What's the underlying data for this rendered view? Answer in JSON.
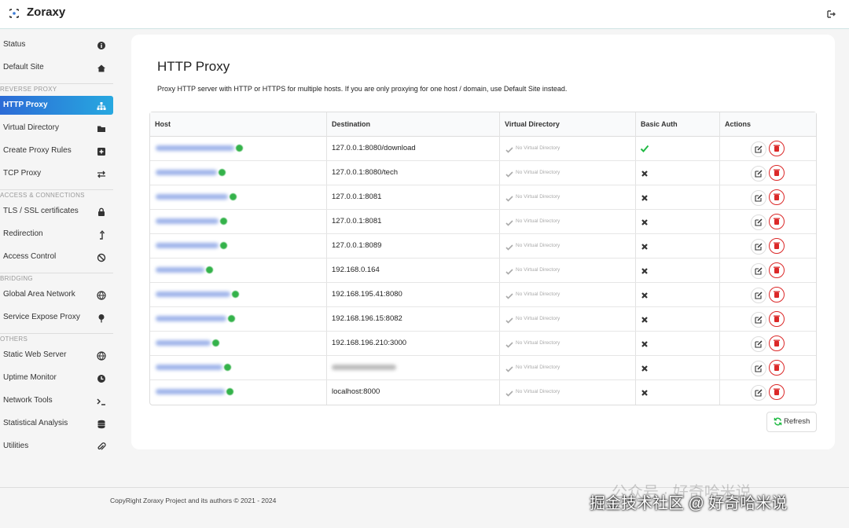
{
  "header": {
    "brand": "Zoraxy"
  },
  "sidebar": [
    {
      "items": [
        {
          "label": "Status",
          "icon": "info"
        },
        {
          "label": "Default Site",
          "icon": "home"
        }
      ]
    },
    {
      "section": "REVERSE PROXY",
      "items": [
        {
          "label": "HTTP Proxy",
          "icon": "sitemap",
          "active": true
        },
        {
          "label": "Virtual Directory",
          "icon": "folder"
        },
        {
          "label": "Create Proxy Rules",
          "icon": "plus"
        },
        {
          "label": "TCP Proxy",
          "icon": "exchange"
        }
      ]
    },
    {
      "section": "ACCESS & CONNECTIONS",
      "items": [
        {
          "label": "TLS / SSL certificates",
          "icon": "lock"
        },
        {
          "label": "Redirection",
          "icon": "level"
        },
        {
          "label": "Access Control",
          "icon": "ban"
        }
      ]
    },
    {
      "section": "BRIDGING",
      "items": [
        {
          "label": "Global Area Network",
          "icon": "globe"
        },
        {
          "label": "Service Expose Proxy",
          "icon": "pin"
        }
      ]
    },
    {
      "section": "OTHERS",
      "items": [
        {
          "label": "Static Web Server",
          "icon": "globe"
        },
        {
          "label": "Uptime Monitor",
          "icon": "clock"
        },
        {
          "label": "Network Tools",
          "icon": "terminal"
        },
        {
          "label": "Statistical Analysis",
          "icon": "db"
        },
        {
          "label": "Utilities",
          "icon": "clip"
        }
      ]
    }
  ],
  "main": {
    "title": "HTTP Proxy",
    "description": "Proxy HTTP server with HTTP or HTTPS for multiple hosts. If you are only proxying for one host / domain, use Default Site instead.",
    "table": {
      "columns": [
        "Host",
        "Destination",
        "Virtual Directory",
        "Basic Auth",
        "Actions"
      ],
      "rows": [
        {
          "destination": "127.0.0.1:8080/download",
          "virtual_directory": "No Virtual Directory",
          "basic_auth": true
        },
        {
          "destination": "127.0.0.1:8080/tech",
          "virtual_directory": "No Virtual Directory",
          "basic_auth": false
        },
        {
          "destination": "127.0.0.1:8081",
          "virtual_directory": "No Virtual Directory",
          "basic_auth": false
        },
        {
          "destination": "127.0.0.1:8081",
          "virtual_directory": "No Virtual Directory",
          "basic_auth": false
        },
        {
          "destination": "127.0.0.1:8089",
          "virtual_directory": "No Virtual Directory",
          "basic_auth": false
        },
        {
          "destination": "192.168.0.164",
          "virtual_directory": "No Virtual Directory",
          "basic_auth": false
        },
        {
          "destination": "192.168.195.41:8080",
          "virtual_directory": "No Virtual Directory",
          "basic_auth": false
        },
        {
          "destination": "192.168.196.15:8082",
          "virtual_directory": "No Virtual Directory",
          "basic_auth": false
        },
        {
          "destination": "192.168.196.210:3000",
          "virtual_directory": "No Virtual Directory",
          "basic_auth": false
        },
        {
          "virtual_directory": "No Virtual Directory",
          "basic_auth": false
        },
        {
          "destination": "localhost:8000",
          "virtual_directory": "No Virtual Directory",
          "basic_auth": false
        }
      ]
    },
    "refresh": "Refresh"
  },
  "footer": "CopyRight Zoraxy Project and its authors © 2021 - 2024",
  "watermark": [
    "公众号 · 好奇哈米说",
    "掘金技术社区 @ 好奇哈米说"
  ]
}
